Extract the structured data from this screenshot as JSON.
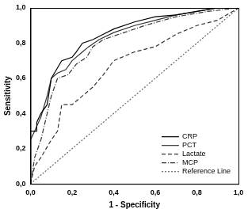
{
  "chart_data": {
    "type": "line",
    "x_label": "1 - Specificity",
    "y_label": "Sensitivity",
    "xlim": [
      0,
      1
    ],
    "ylim": [
      0,
      1
    ],
    "xticks": [
      {
        "value": 0,
        "label": "0,0"
      },
      {
        "value": 0.2,
        "label": "0,2"
      },
      {
        "value": 0.4,
        "label": "0,4"
      },
      {
        "value": 0.6,
        "label": "0,6"
      },
      {
        "value": 0.8,
        "label": "0,8"
      },
      {
        "value": 1,
        "label": "1,0"
      }
    ],
    "yticks": [
      {
        "value": 0,
        "label": "0,0"
      },
      {
        "value": 0.2,
        "label": "0,2"
      },
      {
        "value": 0.4,
        "label": "0,4"
      },
      {
        "value": 0.6,
        "label": "0,6"
      },
      {
        "value": 0.8,
        "label": "0,8"
      },
      {
        "value": 1,
        "label": "1,0"
      }
    ],
    "grid": false,
    "legend": "lower right",
    "series": [
      {
        "name": "CRP",
        "color": "#000000",
        "line_style": "solid",
        "marker": "none",
        "x": [
          0,
          0,
          0.03,
          0.03,
          0.05,
          0.08,
          0.1,
          0.12,
          0.15,
          0.2,
          0.22,
          0.25,
          0.3,
          0.35,
          0.4,
          0.5,
          0.6,
          0.7,
          0.8,
          0.9,
          1
        ],
        "values": [
          0,
          0.3,
          0.3,
          0.35,
          0.4,
          0.45,
          0.6,
          0.64,
          0.7,
          0.72,
          0.75,
          0.8,
          0.82,
          0.85,
          0.88,
          0.92,
          0.95,
          0.96,
          0.98,
          1,
          1
        ]
      },
      {
        "name": "PCT",
        "color": "#333333",
        "line_style": "solid",
        "marker": "none",
        "x": [
          0,
          0,
          0.02,
          0.05,
          0.08,
          0.1,
          0.13,
          0.17,
          0.2,
          0.25,
          0.28,
          0.33,
          0.4,
          0.5,
          0.6,
          0.7,
          0.8,
          0.9,
          1
        ],
        "values": [
          0,
          0.25,
          0.3,
          0.38,
          0.5,
          0.6,
          0.63,
          0.65,
          0.7,
          0.75,
          0.78,
          0.82,
          0.86,
          0.9,
          0.93,
          0.96,
          0.98,
          1,
          1
        ]
      },
      {
        "name": "Lactate",
        "color": "#333333",
        "line_style": "dashed",
        "marker": "none",
        "x": [
          0,
          0.02,
          0.05,
          0.1,
          0.13,
          0.15,
          0.2,
          0.25,
          0.3,
          0.35,
          0.4,
          0.5,
          0.6,
          0.7,
          0.8,
          0.9,
          1
        ],
        "values": [
          0,
          0.1,
          0.15,
          0.25,
          0.3,
          0.45,
          0.45,
          0.5,
          0.55,
          0.62,
          0.7,
          0.75,
          0.78,
          0.85,
          0.9,
          0.93,
          1
        ]
      },
      {
        "name": "MCP",
        "color": "#333333",
        "line_style": "dashdot",
        "marker": "none",
        "x": [
          0,
          0.02,
          0.05,
          0.08,
          0.1,
          0.13,
          0.18,
          0.22,
          0.27,
          0.3,
          0.35,
          0.45,
          0.55,
          0.7,
          0.85,
          1
        ],
        "values": [
          0,
          0.15,
          0.25,
          0.4,
          0.5,
          0.6,
          0.62,
          0.68,
          0.72,
          0.78,
          0.82,
          0.86,
          0.9,
          0.95,
          0.98,
          1
        ]
      },
      {
        "name": "Reference Line",
        "color": "#666666",
        "line_style": "dotted",
        "marker": "none",
        "x": [
          0,
          1
        ],
        "values": [
          0,
          1
        ]
      }
    ]
  }
}
